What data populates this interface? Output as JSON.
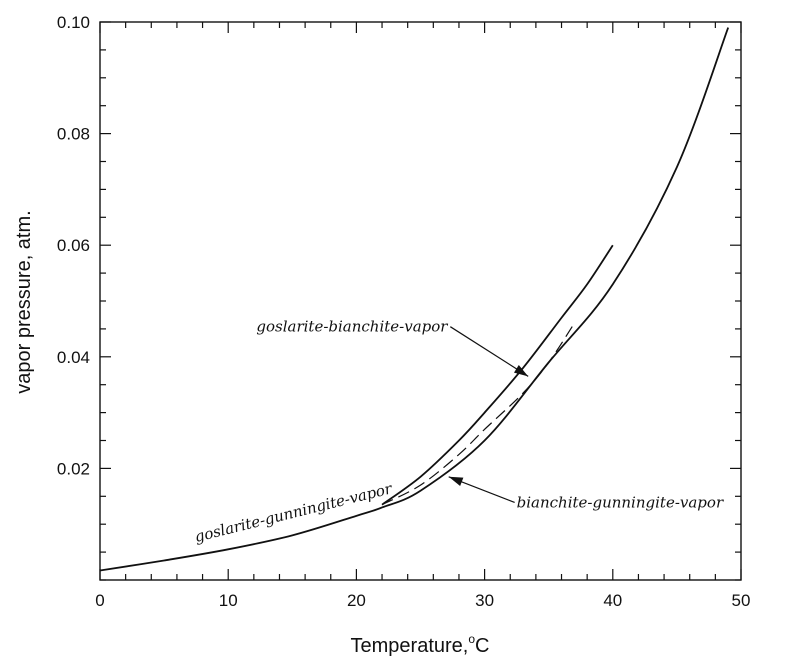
{
  "chart_data": {
    "type": "line",
    "xlabel": "Temperature,",
    "xlabel_unit_sup": "o",
    "xlabel_unit": "C",
    "ylabel": "vapor pressure, atm.",
    "xlim": [
      0,
      50
    ],
    "ylim": [
      0,
      0.1
    ],
    "x_ticks": [
      0,
      10,
      20,
      30,
      40,
      50
    ],
    "y_ticks": [
      0.02,
      0.04,
      0.06,
      0.08,
      0.1
    ],
    "x_tick_labels": [
      "0",
      "10",
      "20",
      "30",
      "40",
      "50"
    ],
    "y_tick_labels": [
      "0.02",
      "0.04",
      "0.06",
      "0.08",
      "0.10"
    ],
    "grid": false,
    "series": [
      {
        "style": "solid",
        "x": [
          0,
          5,
          10,
          15,
          20,
          22,
          25,
          30,
          35,
          40,
          45,
          49
        ],
        "y": [
          0.0017,
          0.0035,
          0.0055,
          0.008,
          0.0115,
          0.013,
          0.016,
          0.025,
          0.039,
          0.053,
          0.074,
          0.099
        ]
      },
      {
        "style": "solid",
        "x": [
          22,
          25,
          28,
          30,
          33,
          36,
          38,
          40
        ],
        "y": [
          0.0135,
          0.0185,
          0.025,
          0.03,
          0.038,
          0.047,
          0.053,
          0.06
        ]
      },
      {
        "style": "dashed",
        "x": [
          22,
          25,
          28,
          30,
          33,
          35,
          37
        ],
        "y": [
          0.0135,
          0.017,
          0.0225,
          0.027,
          0.0335,
          0.039,
          0.046
        ]
      }
    ],
    "annotations": [
      {
        "text": "goslarite-bianchite-vapor",
        "x": 12.2,
        "y": 0.0445,
        "arrow_to": [
          33.4,
          0.0365
        ]
      },
      {
        "text": "bianchite-gunningite-vapor",
        "x": 32.5,
        "y": 0.013,
        "arrow_to": [
          27.2,
          0.0185
        ]
      },
      {
        "text": "goslarite-gunningite-vapor",
        "x": 7.5,
        "y": 0.0068,
        "rotate": -14
      }
    ]
  }
}
